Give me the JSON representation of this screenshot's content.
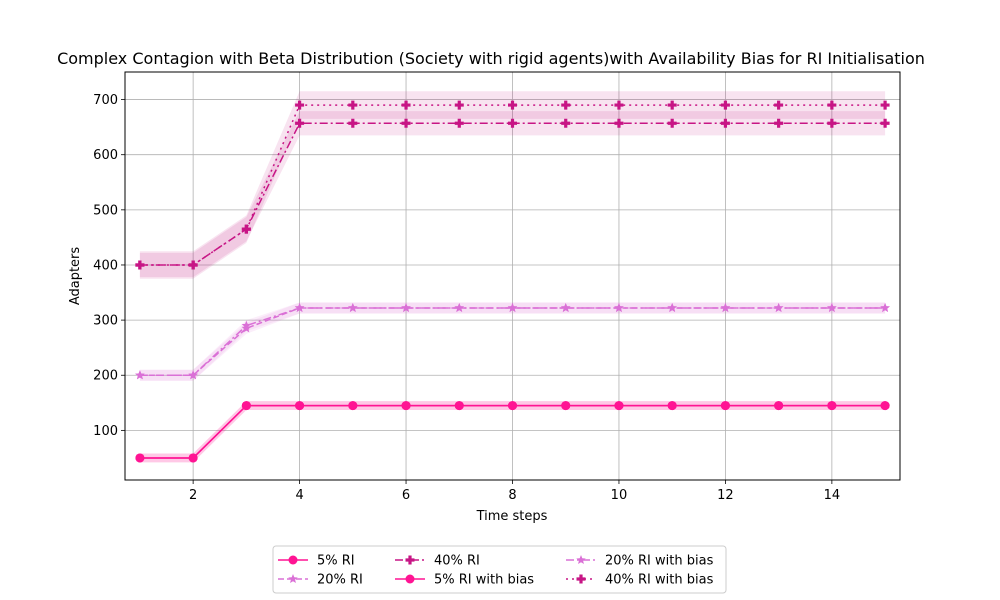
{
  "chart_data": {
    "type": "line",
    "title": "Complex Contagion with Beta Distribution (Society with rigid agents)with Availability Bias for RI Initialisation",
    "xlabel": "Time steps",
    "ylabel": "Adapters",
    "xlim": [
      0.72,
      15.28
    ],
    "ylim": [
      10,
      750
    ],
    "xticks": [
      2,
      4,
      6,
      8,
      10,
      12,
      14
    ],
    "yticks": [
      100,
      200,
      300,
      400,
      500,
      600,
      700
    ],
    "grid": true,
    "legend_position": "below",
    "x": [
      1,
      2,
      3,
      4,
      5,
      6,
      7,
      8,
      9,
      10,
      11,
      12,
      13,
      14,
      15
    ],
    "series": [
      {
        "name": "5% RI",
        "color": "#ff1493",
        "linestyle": "solid",
        "marker": "circle",
        "values": [
          50,
          50,
          145,
          145,
          145,
          145,
          145,
          145,
          145,
          145,
          145,
          145,
          145,
          145,
          145
        ],
        "band": 8
      },
      {
        "name": "20% RI",
        "color": "#da70d6",
        "linestyle": "dashed",
        "marker": "star",
        "values": [
          200,
          200,
          285,
          322,
          322,
          322,
          322,
          322,
          322,
          322,
          322,
          322,
          322,
          322,
          322
        ],
        "band": 10
      },
      {
        "name": "40% RI",
        "color": "#c71585",
        "linestyle": "dashdot",
        "marker": "plus",
        "values": [
          400,
          400,
          465,
          657,
          657,
          657,
          657,
          657,
          657,
          657,
          657,
          657,
          657,
          657,
          657
        ],
        "band": 22
      },
      {
        "name": "5% RI with bias",
        "color": "#ff1493",
        "linestyle": "solid",
        "marker": "circle",
        "values": [
          50,
          50,
          145,
          145,
          145,
          145,
          145,
          145,
          145,
          145,
          145,
          145,
          145,
          145,
          145
        ],
        "band": 8
      },
      {
        "name": "20% RI with bias",
        "color": "#da70d6",
        "linestyle": "dashdot",
        "marker": "star",
        "values": [
          200,
          200,
          290,
          322,
          322,
          322,
          322,
          322,
          322,
          322,
          322,
          322,
          322,
          322,
          322
        ],
        "band": 10
      },
      {
        "name": "40% RI with bias",
        "color": "#c71585",
        "linestyle": "dotted",
        "marker": "plus",
        "values": [
          400,
          400,
          465,
          690,
          690,
          690,
          690,
          690,
          690,
          690,
          690,
          690,
          690,
          690,
          690
        ],
        "band": 25
      }
    ]
  }
}
